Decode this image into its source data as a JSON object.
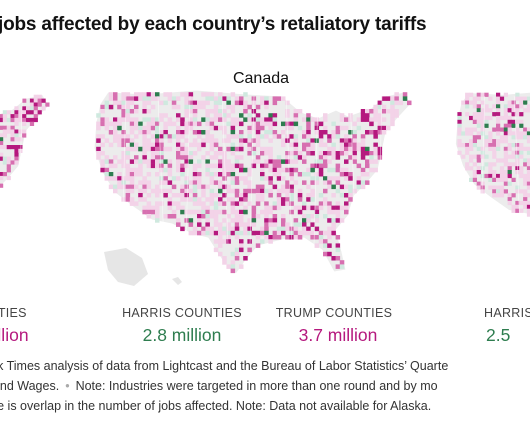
{
  "headline": "jobs affected by each country’s retaliatory tariffs",
  "panels": [
    {
      "title": "",
      "harris_label": "",
      "harris_value": "",
      "trump_label": "UNTIES",
      "trump_value": "llion"
    },
    {
      "title": "Canada",
      "harris_label": "HARRIS COUNTIES",
      "harris_value": "2.8 million",
      "trump_label": "TRUMP COUNTIES",
      "trump_value": "3.7 million"
    },
    {
      "title": "",
      "harris_label": "HARRIS",
      "harris_value": "2.5",
      "trump_label": "",
      "trump_value": ""
    }
  ],
  "source": {
    "line1": "ork Times analysis of data from Lightcast and the Bureau of Labor Statistics’ Quarte",
    "line2_a": "t and Wages.",
    "line2_sep": "•",
    "line2_b": "Note: Industries were targeted in more than one round and by mo",
    "line3": "ere is overlap in the number of jobs affected. Note: Data not available for Alaska."
  },
  "colors": {
    "trump_strong": "#b5197e",
    "trump_mid": "#d76fb0",
    "trump_light": "#f3d3e8",
    "harris_strong": "#2e7d4f",
    "harris_light": "#cfe9df",
    "neutral_land": "#ececec"
  }
}
